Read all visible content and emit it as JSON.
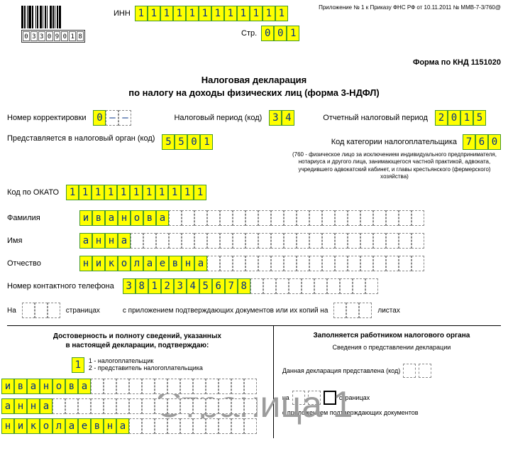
{
  "barcode_digits": [
    "0",
    "3",
    "3",
    "0",
    "9",
    "0",
    "1",
    "8"
  ],
  "header": {
    "inn_label": "ИНН",
    "inn": [
      "1",
      "1",
      "1",
      "1",
      "1",
      "1",
      "1",
      "1",
      "1",
      "1",
      "1",
      "1"
    ],
    "prilog": "Приложение № 1 к Приказу ФНС РФ от 10.11.2011 № ММВ-7-3/760@",
    "page_label": "Стр.",
    "page": [
      "0",
      "0",
      "1"
    ],
    "forma_knd": "Форма по КНД 1151020"
  },
  "title": {
    "line1": "Налоговая декларация",
    "line2": "по налогу на доходы физических лиц (форма 3-НДФЛ)"
  },
  "row1": {
    "corr_label": "Номер корректировки",
    "corr": [
      "0",
      "–",
      "–"
    ],
    "period_label": "Налоговый период (код)",
    "period": [
      "3",
      "4"
    ],
    "year_label": "Отчетный налоговый период",
    "year": [
      "2",
      "0",
      "1",
      "5"
    ]
  },
  "row2": {
    "organ_label": "Представляется в налоговый орган (код)",
    "organ": [
      "5",
      "5",
      "0",
      "1"
    ],
    "cat_label": "Код категории налогоплательщика",
    "cat": [
      "7",
      "6",
      "0"
    ],
    "cat_note": "(760 - физическое лицо за исключением индивидуального предпринимателя, нотариуса и другого лица, занимающегося частной практикой, адвоката, учредившего адвокатский кабинет, и главы крестьянского (фермерского) хозяйства)"
  },
  "okato": {
    "label": "Код по ОКАТО",
    "value": [
      "1",
      "1",
      "1",
      "1",
      "1",
      "1",
      "1",
      "1",
      "1",
      "1",
      "1"
    ]
  },
  "name": {
    "fam_label": "Фамилия",
    "fam": [
      "и",
      "в",
      "а",
      "н",
      "о",
      "в",
      "а"
    ],
    "imya_label": "Имя",
    "imya": [
      "а",
      "н",
      "н",
      "а"
    ],
    "otch_label": "Отчество",
    "otch": [
      "н",
      "и",
      "к",
      "о",
      "л",
      "а",
      "е",
      "в",
      "н",
      "а"
    ]
  },
  "phone": {
    "label": "Номер контактного телефона",
    "value": [
      "3",
      "8",
      "1",
      "2",
      "3",
      "4",
      "5",
      "6",
      "7",
      "8"
    ]
  },
  "pages": {
    "na": "На",
    "stranitsah": "страницах",
    "with_docs": "с приложением подтверждающих документов или их копий на",
    "listah": "листах"
  },
  "left_col": {
    "h1": "Достоверность и полноту сведений, указанных",
    "h2": "в настоящей декларации, подтверждаю:",
    "confirm_value": "1",
    "opt1": "1 - налогоплательщик",
    "opt2": "2 - представитель налогоплательщика",
    "fam": [
      "и",
      "в",
      "а",
      "н",
      "о",
      "в",
      "а"
    ],
    "imya": [
      "а",
      "н",
      "н",
      "а"
    ],
    "otch": [
      "н",
      "и",
      "к",
      "о",
      "л",
      "а",
      "е",
      "в",
      "н",
      "а"
    ]
  },
  "right_col": {
    "h": "Заполняется работником налогового органа",
    "sub": "Сведения о представлении декларации",
    "declared": "Данная декларация представлена (код)",
    "na": "на",
    "stranitsah": "страницах",
    "with_docs": "с приложением подтверждающих документов"
  },
  "watermark": "Страница 1",
  "style": {
    "highlight_bg": "#ffff00",
    "highlight_border": "#469a28",
    "cell_text_color": "#003087",
    "name_cells_total": 27,
    "phone_cells_total": 20,
    "bot_name_cells_total": 20
  }
}
